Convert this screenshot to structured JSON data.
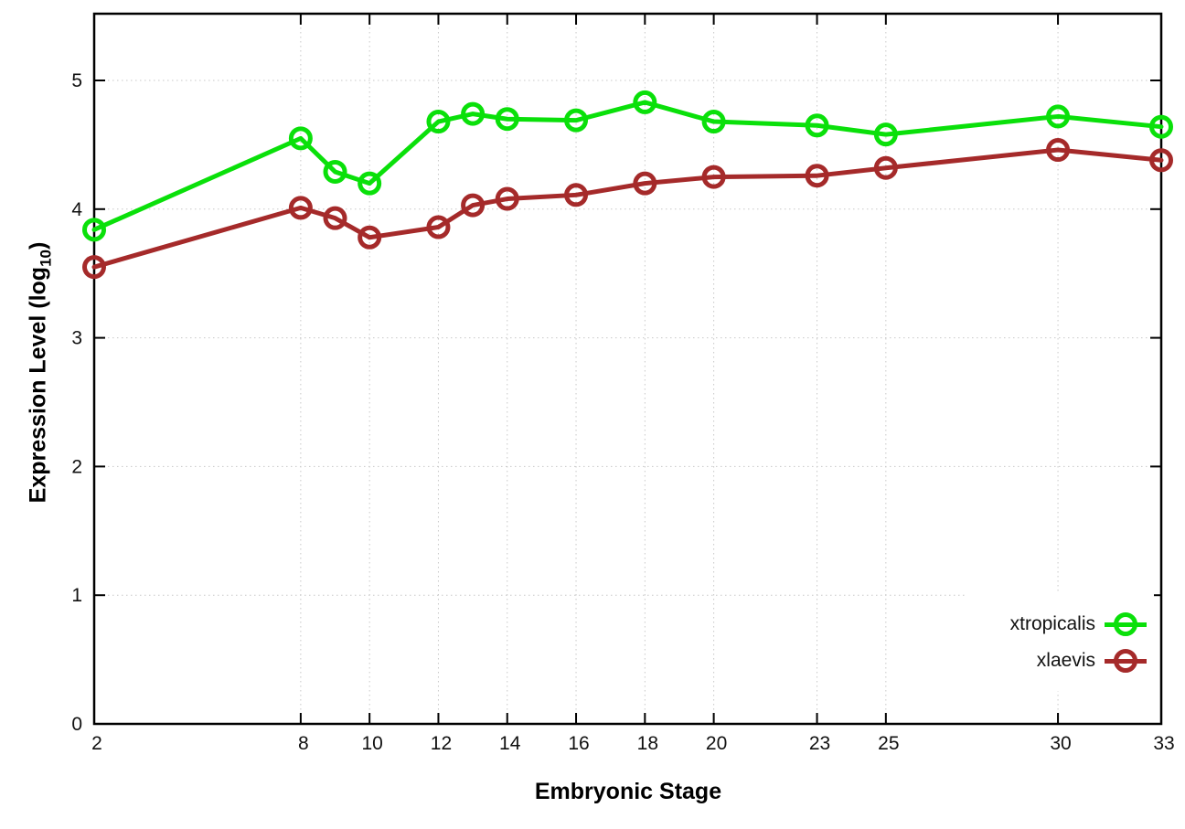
{
  "chart_data": {
    "type": "line",
    "title": "",
    "xlabel": "Embryonic Stage",
    "ylabel": {
      "text": "Expression Level (log",
      "sub": "10",
      "suffix": ")"
    },
    "x_ticks": [
      2,
      8,
      10,
      12,
      14,
      16,
      18,
      20,
      23,
      25,
      30,
      33
    ],
    "y_ticks": [
      0,
      1,
      2,
      3,
      4,
      5
    ],
    "xlim": [
      2,
      33
    ],
    "ylim": [
      0,
      5.52
    ],
    "grid": true,
    "legend_position": "inside-bottom-right",
    "x": [
      2,
      8,
      9,
      10,
      12,
      13,
      14,
      16,
      18,
      20,
      23,
      25,
      30,
      33
    ],
    "series": [
      {
        "name": "xtropicalis",
        "color": "#0ae00a",
        "values": [
          3.84,
          4.55,
          4.29,
          4.2,
          4.68,
          4.74,
          4.7,
          4.69,
          4.83,
          4.68,
          4.65,
          4.58,
          4.72,
          4.64
        ]
      },
      {
        "name": "xlaevis",
        "color": "#a52a2a",
        "values": [
          3.55,
          4.01,
          3.93,
          3.78,
          3.86,
          4.03,
          4.08,
          4.11,
          4.2,
          4.25,
          4.26,
          4.32,
          4.46,
          4.38
        ]
      }
    ],
    "colors": {
      "border": "#000000",
      "grid": "#c8c8c8",
      "tick_text": "#111111"
    }
  }
}
